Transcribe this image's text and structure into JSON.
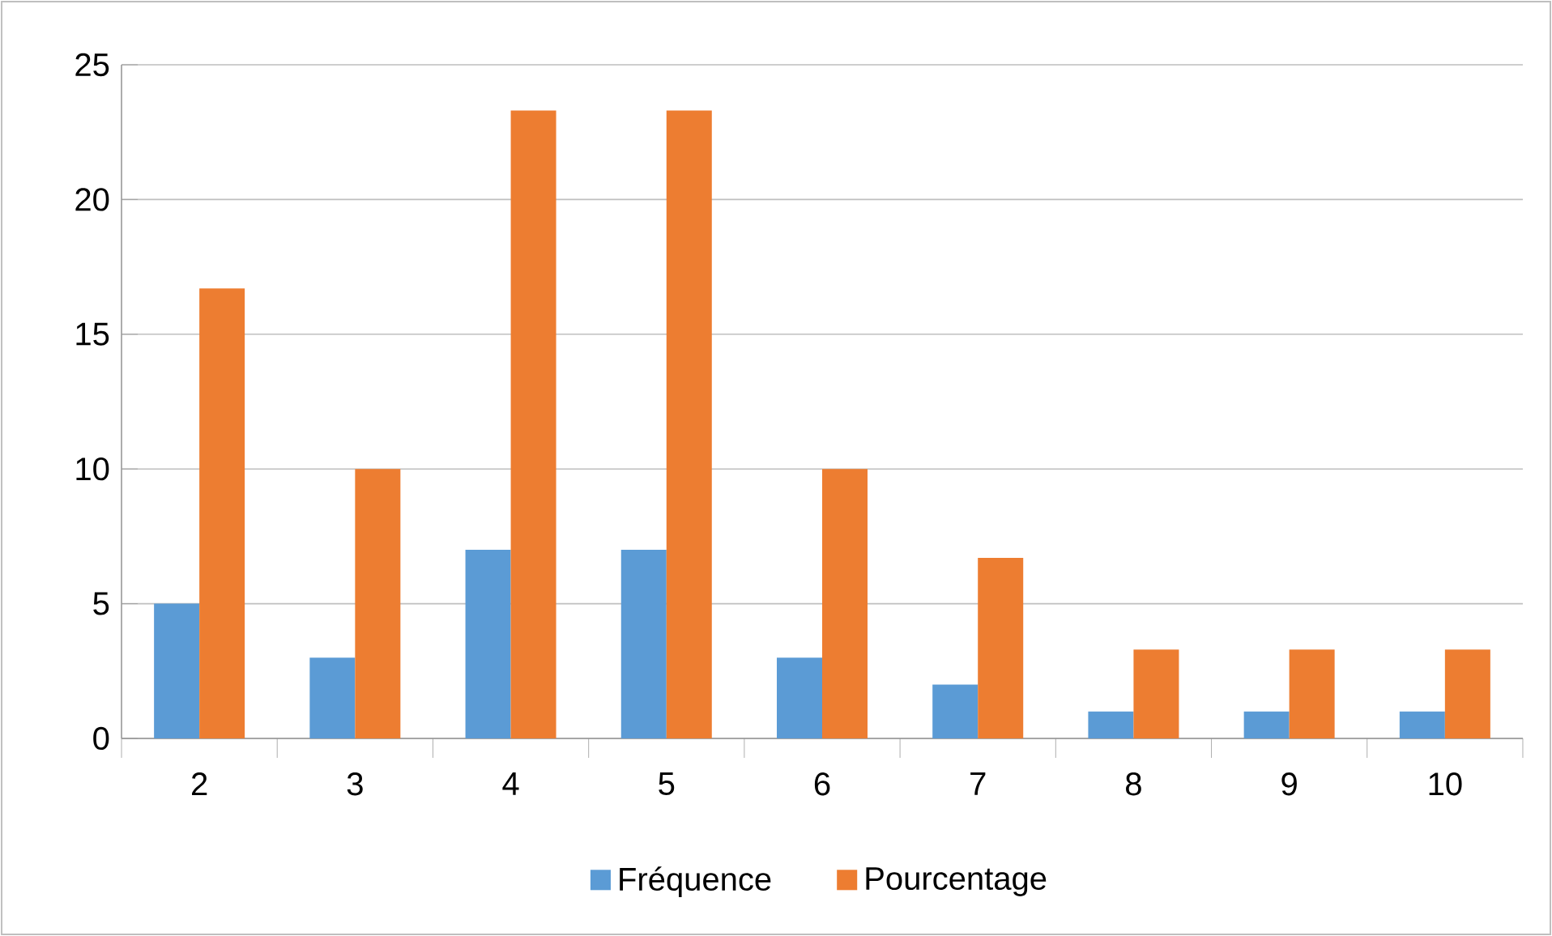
{
  "chart_data": {
    "type": "bar",
    "categories": [
      "2",
      "3",
      "4",
      "5",
      "6",
      "7",
      "8",
      "9",
      "10"
    ],
    "series": [
      {
        "name": "Fréquence",
        "color": "#5b9bd5",
        "values": [
          5,
          3,
          7,
          7,
          3,
          2,
          1,
          1,
          1
        ]
      },
      {
        "name": "Pourcentage",
        "color": "#ed7d31",
        "values": [
          16.7,
          10,
          23.3,
          23.3,
          10,
          6.7,
          3.3,
          3.3,
          3.3
        ]
      }
    ],
    "ylim": [
      0,
      25
    ],
    "yticks": [
      0,
      5,
      10,
      15,
      20,
      25
    ],
    "grid": "y",
    "legend": "bottom"
  }
}
